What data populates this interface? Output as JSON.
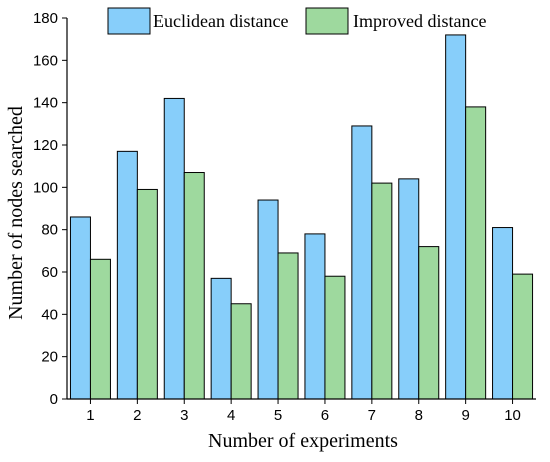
{
  "chart_data": {
    "type": "bar",
    "title": "",
    "xlabel": "Number of experiments",
    "ylabel": "Number of nodes searched",
    "categories": [
      "1",
      "2",
      "3",
      "4",
      "5",
      "6",
      "7",
      "8",
      "9",
      "10"
    ],
    "ylim": [
      0,
      180
    ],
    "yticks": [
      0,
      20,
      40,
      60,
      80,
      100,
      120,
      140,
      160,
      180
    ],
    "grid": false,
    "legend_position": "top",
    "series": [
      {
        "name": "Euclidean distance",
        "color": "#87CEFA",
        "values": [
          86,
          117,
          142,
          57,
          94,
          78,
          129,
          104,
          172,
          81
        ]
      },
      {
        "name": "Improved distance",
        "color": "#9ED99E",
        "values": [
          66,
          99,
          107,
          45,
          69,
          58,
          102,
          72,
          138,
          59
        ]
      }
    ]
  }
}
